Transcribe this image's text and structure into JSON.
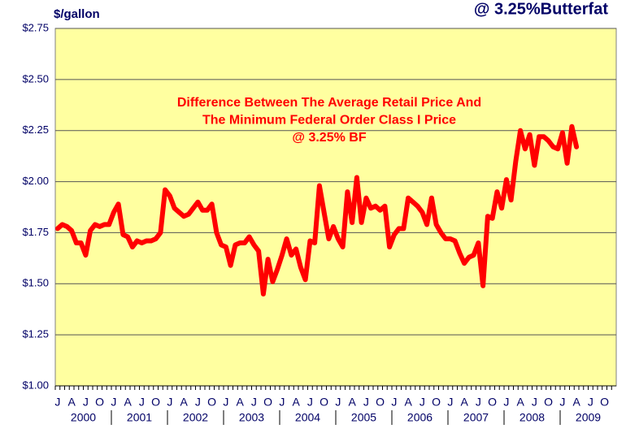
{
  "chart_data": {
    "type": "line",
    "title": "@ 3.25%Butterfat",
    "y_label": "$/gallon",
    "annotation": [
      "Difference Between The Average Retail Price And",
      "The Minimum Federal Order Class I Price",
      "@ 3.25% BF"
    ],
    "categories": [
      "J",
      null,
      null,
      "A",
      null,
      null,
      "J",
      null,
      null,
      "O",
      null,
      null,
      "J",
      null,
      null,
      "A",
      null,
      null,
      "J",
      null,
      null,
      "O",
      null,
      null,
      "J",
      null,
      null,
      "A",
      null,
      null,
      "J",
      null,
      null,
      "O",
      null,
      null,
      "J",
      null,
      null,
      "A",
      null,
      null,
      "J",
      null,
      null,
      "O",
      null,
      null,
      "J",
      null,
      null,
      "A",
      null,
      null,
      "J",
      null,
      null,
      "O",
      null,
      null,
      "J",
      null,
      null,
      "A",
      null,
      null,
      "J",
      null,
      null,
      "O",
      null,
      null,
      "J",
      null,
      null,
      "A",
      null,
      null,
      "J",
      null,
      null,
      "O",
      null,
      null,
      "J",
      null,
      null,
      "A",
      null,
      null,
      "J",
      null,
      null,
      "O",
      null,
      null,
      "J",
      null,
      null,
      "A",
      null,
      null,
      "J",
      null,
      null,
      "O",
      null,
      null,
      "J",
      null,
      null,
      "A",
      null,
      null,
      "J",
      null,
      null,
      "O",
      null,
      null
    ],
    "years": [
      "2000",
      "2001",
      "2002",
      "2003",
      "2004",
      "2005",
      "2006",
      "2007",
      "2008",
      "2009"
    ],
    "series": [
      {
        "color": "#ff0000",
        "values": [
          1.77,
          1.79,
          1.78,
          1.76,
          1.7,
          1.7,
          1.64,
          1.76,
          1.79,
          1.78,
          1.79,
          1.79,
          1.85,
          1.89,
          1.74,
          1.73,
          1.68,
          1.71,
          1.7,
          1.71,
          1.71,
          1.72,
          1.75,
          1.96,
          1.93,
          1.87,
          1.85,
          1.83,
          1.84,
          1.87,
          1.9,
          1.86,
          1.86,
          1.89,
          1.75,
          1.69,
          1.68,
          1.59,
          1.69,
          1.7,
          1.7,
          1.73,
          1.69,
          1.66,
          1.45,
          1.62,
          1.51,
          1.57,
          1.64,
          1.72,
          1.64,
          1.67,
          1.58,
          1.52,
          1.71,
          1.7,
          1.98,
          1.85,
          1.72,
          1.78,
          1.72,
          1.68,
          1.95,
          1.8,
          2.02,
          1.8,
          1.92,
          1.87,
          1.88,
          1.86,
          1.88,
          1.68,
          1.74,
          1.77,
          1.77,
          1.92,
          1.9,
          1.88,
          1.85,
          1.79,
          1.92,
          1.79,
          1.75,
          1.72,
          1.72,
          1.71,
          1.65,
          1.6,
          1.63,
          1.64,
          1.7,
          1.49,
          1.83,
          1.82,
          1.95,
          1.87,
          2.01,
          1.91,
          2.1,
          2.25,
          2.16,
          2.23,
          2.08,
          2.22,
          2.22,
          2.2,
          2.17,
          2.16,
          2.24,
          2.09,
          2.27,
          2.17,
          null,
          null,
          null,
          null,
          null,
          null,
          null,
          null
        ]
      }
    ],
    "ylim": [
      1.0,
      2.75
    ],
    "yticks": [
      {
        "value": 1.0,
        "label": "$1.00"
      },
      {
        "value": 1.25,
        "label": "$1.25"
      },
      {
        "value": 1.5,
        "label": "$1.50"
      },
      {
        "value": 1.75,
        "label": "$1.75"
      },
      {
        "value": 2.0,
        "label": "$2.00"
      },
      {
        "value": 2.25,
        "label": "$2.25"
      },
      {
        "value": 2.5,
        "label": "$2.50"
      },
      {
        "value": 2.75,
        "label": "$2.75"
      }
    ],
    "grid": true,
    "plot_color": "#ffffa0"
  }
}
